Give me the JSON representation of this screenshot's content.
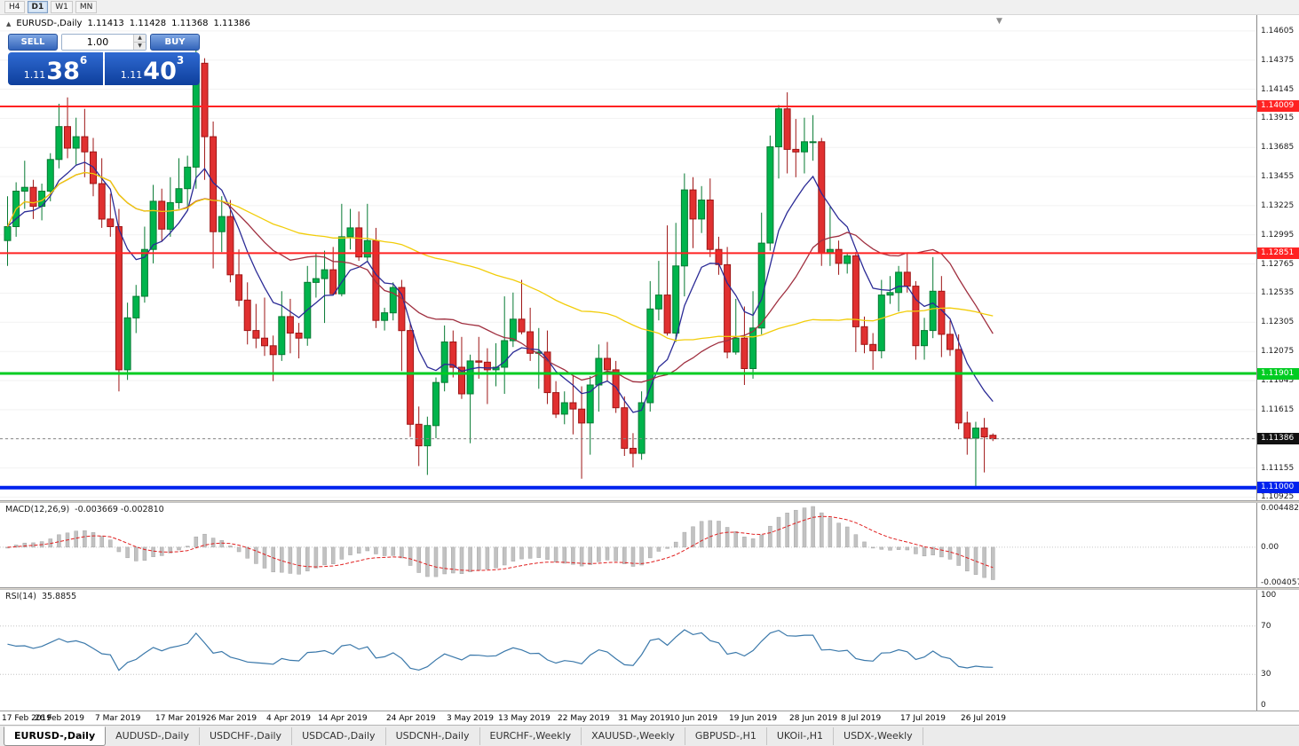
{
  "toolbar": {
    "periods": [
      {
        "label": "H4",
        "active": false
      },
      {
        "label": "D1",
        "active": true
      },
      {
        "label": "W1",
        "active": false
      },
      {
        "label": "MN",
        "active": false
      }
    ]
  },
  "icons": {
    "collapse": "▲",
    "spin_up": "▲",
    "spin_down": "▼",
    "shift_marker": "▼"
  },
  "chart": {
    "info": {
      "symbol": "EURUSD-,Daily",
      "open": "1.11413",
      "high": "1.11428",
      "low": "1.11368",
      "close": "1.11386"
    },
    "trade_panel": {
      "sell_label": "SELL",
      "buy_label": "BUY",
      "volume": "1.00",
      "sell_price": {
        "prefix": "1.11",
        "big": "38",
        "sup": "6"
      },
      "buy_price": {
        "prefix": "1.11",
        "big": "40",
        "sup": "3"
      }
    }
  },
  "chart_data": {
    "type": "candlestick",
    "title": "EURUSD-,Daily",
    "ylim": [
      1.109,
      1.1473
    ],
    "y_scale": {
      "start": 1.10925,
      "step": 0.0023,
      "count": 17
    },
    "current_price": 1.11386,
    "colors": {
      "up_fill": "#00b44c",
      "up_stroke": "#067a32",
      "down_fill": "#e03030",
      "down_stroke": "#9e1515",
      "bid_line": "#858585",
      "grid": "#f2f2f2",
      "bid_badge": "#111111"
    },
    "hlines": [
      {
        "price": 1.14009,
        "label": "1.14009",
        "color": "#ff2222",
        "width": 2
      },
      {
        "price": 1.12851,
        "label": "1.12851",
        "color": "#ff2222",
        "width": 2
      },
      {
        "price": 1.11901,
        "label": "1.11901",
        "color": "#00cc22",
        "width": 3
      },
      {
        "price": 1.11,
        "label": "1.11000",
        "color": "#0022ee",
        "width": 4
      }
    ],
    "moving_averages": [
      {
        "period": 8,
        "method": "ema",
        "color": "#2b2b96"
      },
      {
        "period": 21,
        "method": "sma",
        "color": "#a03040"
      },
      {
        "period": 55,
        "method": "sma",
        "color": "#f2cd0a"
      }
    ],
    "date_labels": [
      {
        "label": "17 Feb 2019",
        "index": 0
      },
      {
        "label": "26 Feb 2019",
        "index": 6
      },
      {
        "label": "7 Mar 2019",
        "index": 13
      },
      {
        "label": "17 Mar 2019",
        "index": 20
      },
      {
        "label": "26 Mar 2019",
        "index": 26
      },
      {
        "label": "4 Apr 2019",
        "index": 33
      },
      {
        "label": "14 Apr 2019",
        "index": 39
      },
      {
        "label": "24 Apr 2019",
        "index": 47
      },
      {
        "label": "3 May 2019",
        "index": 54
      },
      {
        "label": "13 May 2019",
        "index": 60
      },
      {
        "label": "22 May 2019",
        "index": 67
      },
      {
        "label": "31 May 2019",
        "index": 74
      },
      {
        "label": "10 Jun 2019",
        "index": 80
      },
      {
        "label": "19 Jun 2019",
        "index": 87
      },
      {
        "label": "28 Jun 2019",
        "index": 94
      },
      {
        "label": "8 Jul 2019",
        "index": 100
      },
      {
        "label": "17 Jul 2019",
        "index": 107
      },
      {
        "label": "26 Jul 2019",
        "index": 114
      }
    ],
    "candles": [
      [
        1.1295,
        1.133,
        1.1275,
        1.1306
      ],
      [
        1.1306,
        1.1341,
        1.1298,
        1.1334
      ],
      [
        1.1334,
        1.1358,
        1.132,
        1.1337
      ],
      [
        1.1337,
        1.1343,
        1.1312,
        1.1322
      ],
      [
        1.1322,
        1.134,
        1.1311,
        1.1334
      ],
      [
        1.1334,
        1.1364,
        1.1326,
        1.1359
      ],
      [
        1.1359,
        1.1403,
        1.1352,
        1.1385
      ],
      [
        1.1385,
        1.1408,
        1.136,
        1.1368
      ],
      [
        1.1368,
        1.1392,
        1.1355,
        1.1377
      ],
      [
        1.1377,
        1.1399,
        1.1345,
        1.1365
      ],
      [
        1.1365,
        1.1376,
        1.133,
        1.134
      ],
      [
        1.134,
        1.136,
        1.1305,
        1.1312
      ],
      [
        1.1312,
        1.1332,
        1.1298,
        1.1306
      ],
      [
        1.1306,
        1.132,
        1.1176,
        1.1193
      ],
      [
        1.1193,
        1.1246,
        1.1185,
        1.1234
      ],
      [
        1.1234,
        1.126,
        1.1222,
        1.1251
      ],
      [
        1.1251,
        1.1306,
        1.1246,
        1.1288
      ],
      [
        1.1288,
        1.1339,
        1.1277,
        1.1326
      ],
      [
        1.1326,
        1.1336,
        1.1294,
        1.1304
      ],
      [
        1.1304,
        1.1345,
        1.1298,
        1.1325
      ],
      [
        1.1325,
        1.136,
        1.132,
        1.1336
      ],
      [
        1.1336,
        1.1362,
        1.1322,
        1.1353
      ],
      [
        1.1353,
        1.1448,
        1.1336,
        1.1435
      ],
      [
        1.1435,
        1.1439,
        1.1343,
        1.1377
      ],
      [
        1.1377,
        1.1389,
        1.1273,
        1.1302
      ],
      [
        1.1302,
        1.133,
        1.1286,
        1.1314
      ],
      [
        1.1314,
        1.1327,
        1.1262,
        1.1268
      ],
      [
        1.1268,
        1.1288,
        1.1243,
        1.1248
      ],
      [
        1.1248,
        1.1262,
        1.1213,
        1.1224
      ],
      [
        1.1224,
        1.1245,
        1.121,
        1.1218
      ],
      [
        1.1218,
        1.125,
        1.1204,
        1.1212
      ],
      [
        1.1212,
        1.122,
        1.1184,
        1.1205
      ],
      [
        1.1205,
        1.1255,
        1.12,
        1.1235
      ],
      [
        1.1235,
        1.1249,
        1.1206,
        1.1222
      ],
      [
        1.1222,
        1.123,
        1.1202,
        1.1218
      ],
      [
        1.1218,
        1.1275,
        1.1212,
        1.1262
      ],
      [
        1.1262,
        1.1285,
        1.125,
        1.1265
      ],
      [
        1.1265,
        1.1287,
        1.123,
        1.1272
      ],
      [
        1.1272,
        1.129,
        1.1252,
        1.1253
      ],
      [
        1.1253,
        1.1324,
        1.1251,
        1.1298
      ],
      [
        1.1298,
        1.132,
        1.1288,
        1.1305
      ],
      [
        1.1305,
        1.1318,
        1.1279,
        1.1282
      ],
      [
        1.1282,
        1.1324,
        1.1278,
        1.1295
      ],
      [
        1.1295,
        1.1305,
        1.1226,
        1.1232
      ],
      [
        1.1232,
        1.1242,
        1.1224,
        1.1238
      ],
      [
        1.1238,
        1.1262,
        1.1232,
        1.1258
      ],
      [
        1.1258,
        1.1264,
        1.1192,
        1.1224
      ],
      [
        1.1224,
        1.123,
        1.114,
        1.115
      ],
      [
        1.115,
        1.1164,
        1.1117,
        1.1133
      ],
      [
        1.1133,
        1.1156,
        1.111,
        1.1149
      ],
      [
        1.1149,
        1.1187,
        1.1139,
        1.1183
      ],
      [
        1.1183,
        1.1228,
        1.1176,
        1.1215
      ],
      [
        1.1215,
        1.1224,
        1.1187,
        1.1195
      ],
      [
        1.1195,
        1.1219,
        1.117,
        1.1174
      ],
      [
        1.1174,
        1.1205,
        1.1135,
        1.12
      ],
      [
        1.12,
        1.1219,
        1.1186,
        1.1199
      ],
      [
        1.1199,
        1.121,
        1.1166,
        1.1193
      ],
      [
        1.1193,
        1.1214,
        1.118,
        1.1195
      ],
      [
        1.1195,
        1.1251,
        1.1174,
        1.1216
      ],
      [
        1.1216,
        1.1254,
        1.1211,
        1.1233
      ],
      [
        1.1233,
        1.1264,
        1.1221,
        1.1223
      ],
      [
        1.1223,
        1.1242,
        1.12,
        1.1206
      ],
      [
        1.1206,
        1.1226,
        1.1178,
        1.1207
      ],
      [
        1.1207,
        1.1224,
        1.1166,
        1.1175
      ],
      [
        1.1175,
        1.1184,
        1.1155,
        1.1158
      ],
      [
        1.1158,
        1.1176,
        1.115,
        1.1167
      ],
      [
        1.1167,
        1.1188,
        1.1142,
        1.1162
      ],
      [
        1.1162,
        1.118,
        1.1107,
        1.1151
      ],
      [
        1.1151,
        1.1188,
        1.1126,
        1.1181
      ],
      [
        1.1181,
        1.1213,
        1.116,
        1.1202
      ],
      [
        1.1202,
        1.1215,
        1.1184,
        1.1193
      ],
      [
        1.1193,
        1.12,
        1.1159,
        1.1163
      ],
      [
        1.1163,
        1.1172,
        1.1125,
        1.1131
      ],
      [
        1.1131,
        1.1143,
        1.1116,
        1.1127
      ],
      [
        1.1127,
        1.1176,
        1.1122,
        1.1167
      ],
      [
        1.1167,
        1.1263,
        1.116,
        1.1241
      ],
      [
        1.1241,
        1.1279,
        1.1232,
        1.1252
      ],
      [
        1.1252,
        1.1307,
        1.122,
        1.1222
      ],
      [
        1.1222,
        1.1309,
        1.1215,
        1.1275
      ],
      [
        1.1275,
        1.1348,
        1.1251,
        1.1335
      ],
      [
        1.1335,
        1.1345,
        1.1289,
        1.1312
      ],
      [
        1.1312,
        1.1338,
        1.1301,
        1.1327
      ],
      [
        1.1327,
        1.1344,
        1.1282,
        1.1288
      ],
      [
        1.1288,
        1.1298,
        1.1268,
        1.1276
      ],
      [
        1.1276,
        1.129,
        1.1202,
        1.1207
      ],
      [
        1.1207,
        1.1249,
        1.1205,
        1.1218
      ],
      [
        1.1218,
        1.1243,
        1.1181,
        1.1194
      ],
      [
        1.1194,
        1.1255,
        1.1186,
        1.1226
      ],
      [
        1.1226,
        1.1317,
        1.1221,
        1.1293
      ],
      [
        1.1293,
        1.1378,
        1.1287,
        1.1369
      ],
      [
        1.1369,
        1.1402,
        1.1344,
        1.1399
      ],
      [
        1.1399,
        1.1412,
        1.1348,
        1.1367
      ],
      [
        1.1367,
        1.1391,
        1.1345,
        1.1365
      ],
      [
        1.1365,
        1.1392,
        1.1348,
        1.1373
      ],
      [
        1.1373,
        1.1394,
        1.1358,
        1.1373
      ],
      [
        1.1373,
        1.1376,
        1.1275,
        1.1285
      ],
      [
        1.1285,
        1.1322,
        1.1275,
        1.1288
      ],
      [
        1.1288,
        1.1295,
        1.1268,
        1.1277
      ],
      [
        1.1277,
        1.1285,
        1.1269,
        1.1283
      ],
      [
        1.1283,
        1.1286,
        1.1207,
        1.1227
      ],
      [
        1.1227,
        1.1235,
        1.1206,
        1.1213
      ],
      [
        1.1213,
        1.1222,
        1.1193,
        1.1208
      ],
      [
        1.1208,
        1.1264,
        1.1202,
        1.1252
      ],
      [
        1.1252,
        1.1267,
        1.1245,
        1.1254
      ],
      [
        1.1254,
        1.1275,
        1.1239,
        1.127
      ],
      [
        1.127,
        1.1285,
        1.1254,
        1.1259
      ],
      [
        1.1259,
        1.1263,
        1.1201,
        1.1212
      ],
      [
        1.1212,
        1.1234,
        1.1201,
        1.1224
      ],
      [
        1.1224,
        1.1282,
        1.1218,
        1.1255
      ],
      [
        1.1255,
        1.1267,
        1.1203,
        1.1221
      ],
      [
        1.1221,
        1.1232,
        1.1204,
        1.1209
      ],
      [
        1.1209,
        1.1221,
        1.1146,
        1.1151
      ],
      [
        1.1151,
        1.116,
        1.1126,
        1.1139
      ],
      [
        1.1139,
        1.1152,
        1.1101,
        1.1147
      ],
      [
        1.1147,
        1.1155,
        1.1112,
        1.114
      ],
      [
        1.11413,
        1.11428,
        1.11368,
        1.11386
      ]
    ]
  },
  "macd": {
    "label": "MACD(12,26,9)",
    "values": "-0.003669 -0.002810",
    "ylim": [
      -0.004057,
      0.004482
    ],
    "histogram_color": "#c2c2c2",
    "histogram_stroke": "#a6a6a6",
    "signal_color": "#e02020",
    "scale_labels": [
      {
        "text": "0.004482",
        "value": 0.004482
      },
      {
        "text": "0.00",
        "value": 0
      },
      {
        "text": "-0.004057",
        "value": -0.004057
      }
    ]
  },
  "rsi": {
    "label": "RSI(14)",
    "value": "35.8855",
    "line_color": "#3a78aa",
    "levels": [
      70,
      30
    ],
    "scale_labels": [
      {
        "text": "100",
        "value": 100
      },
      {
        "text": "70",
        "value": 70
      },
      {
        "text": "30",
        "value": 30
      },
      {
        "text": "0",
        "value": 0
      }
    ]
  },
  "tabs": [
    {
      "label": "EURUSD-,Daily",
      "active": true
    },
    {
      "label": "AUDUSD-,Daily",
      "active": false
    },
    {
      "label": "USDCHF-,Daily",
      "active": false
    },
    {
      "label": "USDCAD-,Daily",
      "active": false
    },
    {
      "label": "USDCNH-,Daily",
      "active": false
    },
    {
      "label": "EURCHF-,Weekly",
      "active": false
    },
    {
      "label": "XAUUSD-,Weekly",
      "active": false
    },
    {
      "label": "GBPUSD-,H1",
      "active": false
    },
    {
      "label": "UKOil-,H1",
      "active": false
    },
    {
      "label": "USDX-,Weekly",
      "active": false
    }
  ]
}
